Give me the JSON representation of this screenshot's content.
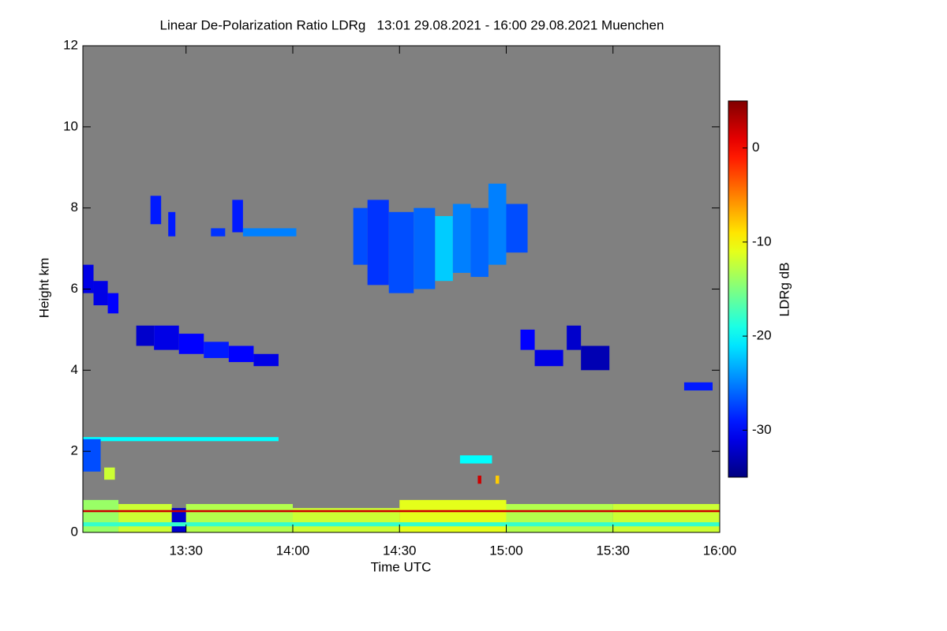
{
  "chart_data": {
    "type": "heatmap",
    "title": "Linear De-Polarization Ratio LDRg   13:01 29.08.2021 - 16:00 29.08.2021 Muenchen",
    "x_label": "Time UTC",
    "y_label": "Height km",
    "colorbar_label": "LDRg dB",
    "background": "#808080",
    "colormap": "jet",
    "xlim": [
      781,
      960
    ],
    "xticks": [
      {
        "value": 810,
        "label": "13:30"
      },
      {
        "value": 840,
        "label": "14:00"
      },
      {
        "value": 870,
        "label": "14:30"
      },
      {
        "value": 900,
        "label": "15:00"
      },
      {
        "value": 930,
        "label": "15:30"
      },
      {
        "value": 960,
        "label": "16:00"
      }
    ],
    "ylim": [
      0,
      12
    ],
    "yticks": [
      0,
      2,
      4,
      6,
      8,
      10,
      12
    ],
    "clim": [
      -35,
      5
    ],
    "cticks": [
      0,
      -10,
      -20,
      -30
    ],
    "x0": [
      781,
      784,
      788,
      796,
      801,
      808,
      815,
      822,
      829,
      800,
      805,
      817,
      823,
      826,
      857,
      861,
      867,
      874,
      880,
      885,
      890,
      895,
      900,
      904,
      908,
      917,
      921,
      950,
      781,
      781,
      787,
      887,
      892,
      897,
      781,
      791,
      806,
      810,
      840,
      870,
      900,
      930,
      781,
      781
    ],
    "x1": [
      784,
      788,
      791,
      801,
      808,
      815,
      822,
      829,
      836,
      803,
      807,
      821,
      826,
      841,
      861,
      867,
      874,
      880,
      885,
      890,
      895,
      900,
      906,
      908,
      916,
      921,
      929,
      958,
      836,
      786,
      790,
      896,
      893,
      898,
      791,
      806,
      810,
      840,
      870,
      900,
      930,
      960,
      960,
      960
    ],
    "y0": [
      5.9,
      5.6,
      5.4,
      4.6,
      4.5,
      4.4,
      4.3,
      4.2,
      4.1,
      7.6,
      7.3,
      7.3,
      7.4,
      7.3,
      6.6,
      6.1,
      5.9,
      6.0,
      6.2,
      6.4,
      6.3,
      6.6,
      6.9,
      4.5,
      4.1,
      4.5,
      4.0,
      3.5,
      2.25,
      1.5,
      1.3,
      1.7,
      1.2,
      1.2,
      0,
      0,
      0,
      0,
      0,
      0,
      0,
      0,
      0.5,
      0.15
    ],
    "y1": [
      6.6,
      6.2,
      5.9,
      5.1,
      5.1,
      4.9,
      4.7,
      4.6,
      4.4,
      8.3,
      7.9,
      7.5,
      8.2,
      7.5,
      8.0,
      8.2,
      7.9,
      8.0,
      7.8,
      8.1,
      8.0,
      8.6,
      8.1,
      5.0,
      4.5,
      5.1,
      4.6,
      3.7,
      2.35,
      2.3,
      1.6,
      1.9,
      1.4,
      1.4,
      0.8,
      0.7,
      0.6,
      0.7,
      0.6,
      0.8,
      0.7,
      0.7,
      0.55,
      0.25
    ],
    "values": [
      -31,
      -31,
      -30,
      -32,
      -31,
      -30,
      -29,
      -30,
      -31,
      -29,
      -29,
      -28,
      -29,
      -25,
      -27,
      -28,
      -27,
      -26,
      -22,
      -25,
      -26,
      -25,
      -27,
      -30,
      -31,
      -32,
      -33,
      -29,
      -20,
      -27,
      -12,
      -20,
      2,
      -8,
      -14,
      -12,
      -32,
      -13,
      -12,
      -11,
      -13,
      -12,
      2,
      -18
    ]
  }
}
